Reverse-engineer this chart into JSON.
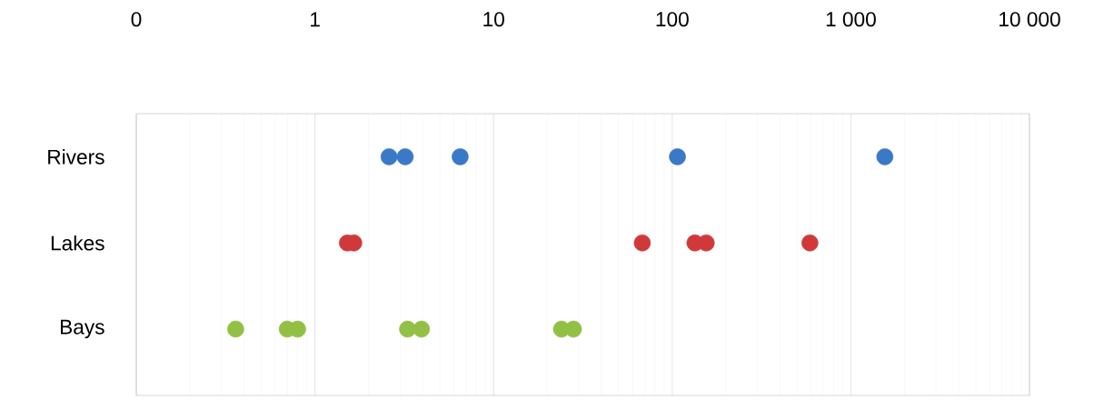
{
  "chart_data": {
    "type": "scatter",
    "orientation": "horizontal",
    "categories": [
      "Rivers",
      "Lakes",
      "Bays"
    ],
    "log": "x",
    "xlim": [
      0.1,
      10000
    ],
    "xticks": [
      {
        "value": 0.1,
        "label": "0"
      },
      1,
      10,
      100,
      {
        "value": 1000,
        "label": "1 000"
      },
      {
        "value": 10000,
        "label": "10 000"
      }
    ],
    "grid": "x",
    "marker": "circle",
    "series": [
      {
        "color": "#3a78c8",
        "x": [
          "Rivers",
          "Rivers",
          "Rivers",
          "Rivers",
          "Rivers"
        ],
        "values": [
          2.6,
          3.2,
          6.5,
          107,
          1550
        ]
      },
      {
        "color": "#d0393a",
        "x": [
          "Lakes",
          "Lakes",
          "Lakes",
          "Lakes",
          "Lakes",
          "Lakes"
        ],
        "values": [
          1.52,
          1.65,
          68,
          134,
          155,
          590
        ]
      },
      {
        "color": "#92c045",
        "x": [
          "Bays",
          "Bays",
          "Bays",
          "Bays",
          "Bays",
          "Bays",
          "Bays"
        ],
        "values": [
          0.36,
          0.7,
          0.8,
          3.3,
          3.95,
          24,
          28
        ]
      }
    ]
  }
}
